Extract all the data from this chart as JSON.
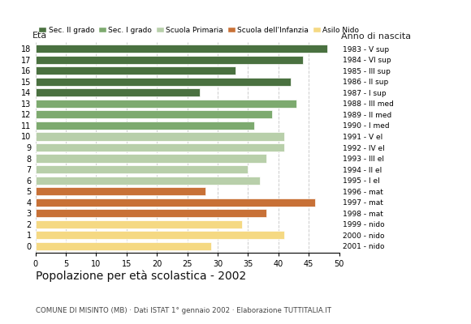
{
  "ages": [
    18,
    17,
    16,
    15,
    14,
    13,
    12,
    11,
    10,
    9,
    8,
    7,
    6,
    5,
    4,
    3,
    2,
    1,
    0
  ],
  "values": [
    48,
    44,
    33,
    42,
    27,
    43,
    39,
    36,
    41,
    41,
    38,
    35,
    37,
    28,
    46,
    38,
    34,
    41,
    29
  ],
  "right_labels": [
    "1983 - V sup",
    "1984 - VI sup",
    "1985 - III sup",
    "1986 - II sup",
    "1987 - I sup",
    "1988 - III med",
    "1989 - II med",
    "1990 - I med",
    "1991 - V el",
    "1992 - IV el",
    "1993 - III el",
    "1994 - II el",
    "1995 - I el",
    "1996 - mat",
    "1997 - mat",
    "1998 - mat",
    "1999 - nido",
    "2000 - nido",
    "2001 - nido"
  ],
  "bar_colors": [
    "#4a7140",
    "#4a7140",
    "#4a7140",
    "#4a7140",
    "#4a7140",
    "#7daa6f",
    "#7daa6f",
    "#7daa6f",
    "#b8cfaa",
    "#b8cfaa",
    "#b8cfaa",
    "#b8cfaa",
    "#b8cfaa",
    "#c87137",
    "#c87137",
    "#c87137",
    "#f5d983",
    "#f5d983",
    "#f5d983"
  ],
  "legend_labels": [
    "Sec. II grado",
    "Sec. I grado",
    "Scuola Primaria",
    "Scuola dell'Infanzia",
    "Asilo Nido"
  ],
  "legend_colors": [
    "#4a7140",
    "#7daa6f",
    "#b8cfaa",
    "#c87137",
    "#f5d983"
  ],
  "eta_label": "Età",
  "anno_label": "Anno di nascita",
  "xlim": [
    0,
    50
  ],
  "xticks": [
    0,
    5,
    10,
    15,
    20,
    25,
    30,
    35,
    40,
    45,
    50
  ],
  "title": "Popolazione per età scolastica - 2002",
  "subtitle": "COMUNE DI MISINTO (MB) · Dati ISTAT 1° gennaio 2002 · Elaborazione TUTTITALIA.IT",
  "bg_color": "#ffffff",
  "grid_color": "#cccccc"
}
